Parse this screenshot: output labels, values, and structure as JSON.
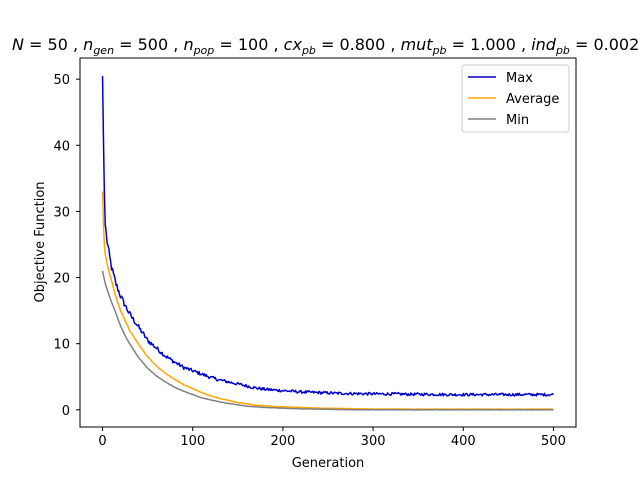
{
  "chart_data": {
    "type": "line",
    "title": {
      "n_label": "N",
      "n_value": "50",
      "gen_base": "n",
      "gen_sub": "gen",
      "gen_value": "500",
      "pop_base": "n",
      "pop_sub": "pop",
      "pop_value": "100",
      "cx_base": "cx",
      "cx_sub": "pb",
      "cx_value": "0.800",
      "mut_base": "mut",
      "mut_sub": "pb",
      "mut_value": "1.000",
      "ind_base": "ind",
      "ind_sub": "pb",
      "ind_value": "0.002"
    },
    "xlabel": "Generation",
    "ylabel": "Objective Function",
    "xlim": [
      -25,
      525
    ],
    "ylim": [
      -2.6,
      53.2
    ],
    "xticks": [
      0,
      100,
      200,
      300,
      400,
      500
    ],
    "yticks": [
      0,
      10,
      20,
      30,
      40,
      50
    ],
    "legend_position": "top-right",
    "grid": false,
    "series": [
      {
        "name": "Max",
        "color": "#0000cc",
        "x": [
          0,
          1,
          2,
          3,
          5,
          8,
          10,
          15,
          20,
          25,
          30,
          40,
          50,
          60,
          70,
          80,
          90,
          100,
          110,
          120,
          130,
          140,
          150,
          160,
          170,
          180,
          190,
          200,
          220,
          240,
          260,
          280,
          300,
          320,
          340,
          360,
          380,
          400,
          420,
          440,
          460,
          480,
          500
        ],
        "y": [
          50.5,
          41,
          33,
          28,
          25.5,
          23,
          21.5,
          19,
          17.2,
          15.8,
          14.5,
          12.5,
          10.5,
          9.3,
          8.1,
          7.2,
          6.4,
          5.9,
          5.4,
          4.9,
          4.5,
          4.2,
          3.9,
          3.6,
          3.3,
          3.1,
          3.0,
          2.9,
          2.7,
          2.6,
          2.5,
          2.45,
          2.4,
          2.4,
          2.35,
          2.35,
          2.3,
          2.3,
          2.3,
          2.3,
          2.3,
          2.3,
          2.3
        ]
      },
      {
        "name": "Average",
        "color": "#ffa500",
        "x": [
          0,
          1,
          2,
          3,
          5,
          8,
          10,
          15,
          20,
          25,
          30,
          40,
          50,
          60,
          70,
          80,
          90,
          100,
          110,
          120,
          130,
          140,
          150,
          160,
          170,
          180,
          190,
          200,
          220,
          240,
          260,
          280,
          300,
          350,
          400,
          450,
          500
        ],
        "y": [
          33,
          28,
          25,
          23.5,
          22,
          20.5,
          19.5,
          17,
          15,
          13.5,
          12,
          9.9,
          8.0,
          6.6,
          5.5,
          4.6,
          3.8,
          3.2,
          2.6,
          2.1,
          1.7,
          1.4,
          1.1,
          0.9,
          0.7,
          0.6,
          0.5,
          0.45,
          0.35,
          0.25,
          0.2,
          0.15,
          0.12,
          0.1,
          0.1,
          0.1,
          0.1
        ]
      },
      {
        "name": "Min",
        "color": "#808080",
        "x": [
          0,
          1,
          2,
          3,
          5,
          8,
          10,
          15,
          20,
          25,
          30,
          40,
          50,
          60,
          70,
          80,
          90,
          100,
          110,
          120,
          130,
          140,
          150,
          160,
          170,
          180,
          190,
          200,
          220,
          240,
          260,
          280,
          300,
          350,
          400,
          450,
          500
        ],
        "y": [
          21,
          20.3,
          19.7,
          19.1,
          18.3,
          17,
          16.3,
          14.5,
          12.7,
          11.2,
          10.0,
          7.9,
          6.3,
          5.1,
          4.2,
          3.4,
          2.8,
          2.3,
          1.8,
          1.5,
          1.2,
          0.95,
          0.75,
          0.55,
          0.45,
          0.35,
          0.3,
          0.25,
          0.15,
          0.1,
          0.05,
          0,
          0,
          0,
          0,
          0,
          0
        ]
      }
    ]
  }
}
